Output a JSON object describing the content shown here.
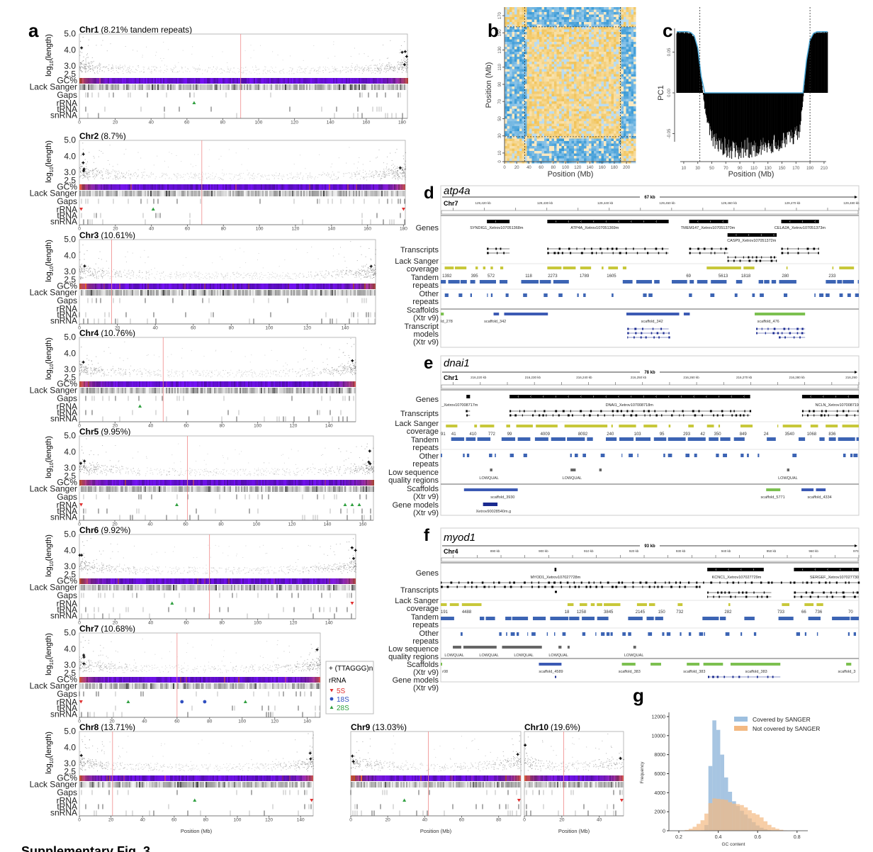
{
  "caption": "Supplementary Fig. 3",
  "panel_a": {
    "label": "a",
    "ylabel_main": "log",
    "ylabel_sub": "10",
    "ylabel_tail": "(length)",
    "yticks": [
      "5.0",
      "4.0",
      "3.0",
      "2.5"
    ],
    "rows": [
      "GC%",
      "Lack Sanger",
      "Gaps",
      "rRNA",
      "tRNA",
      "snRNA"
    ],
    "xlabel": "Position (Mb)",
    "colors": {
      "gc_low": "#6a10e0",
      "gc_high": "#e0602a",
      "centromere": "#f08a8a",
      "points": "#777777"
    },
    "chromosomes": [
      {
        "name": "Chr1",
        "note": "(8.21% tandem repeats)",
        "length_mb": 183,
        "centromere_mb": 90,
        "ticks": [
          0,
          20,
          40,
          60,
          80,
          100,
          120,
          140,
          160,
          180
        ]
      },
      {
        "name": "Chr2",
        "note": "(8.7%)",
        "length_mb": 181,
        "centromere_mb": 68,
        "ticks": [
          0,
          20,
          40,
          60,
          80,
          100,
          120,
          140,
          160,
          180
        ]
      },
      {
        "name": "Chr3",
        "note": "(10.61%)",
        "length_mb": 156,
        "centromere_mb": 17,
        "ticks": [
          0,
          20,
          40,
          60,
          80,
          100,
          120,
          140
        ]
      },
      {
        "name": "Chr4",
        "note": "(10.76%)",
        "length_mb": 155,
        "centromere_mb": 47,
        "ticks": [
          0,
          20,
          40,
          60,
          80,
          100,
          120,
          140
        ]
      },
      {
        "name": "Chr5",
        "note": "(9.95%)",
        "length_mb": 166,
        "centromere_mb": 61,
        "ticks": [
          0,
          20,
          40,
          60,
          80,
          100,
          120,
          140,
          160
        ]
      },
      {
        "name": "Chr6",
        "note": "(9.92%)",
        "length_mb": 155,
        "centromere_mb": 73,
        "ticks": [
          0,
          20,
          40,
          60,
          80,
          100,
          120,
          140
        ]
      },
      {
        "name": "Chr7",
        "note": "(10.68%)",
        "length_mb": 148,
        "centromere_mb": 60,
        "ticks": [
          0,
          20,
          40,
          60,
          80,
          100,
          120,
          140
        ]
      },
      {
        "name": "Chr8",
        "note": "(13.71%)",
        "length_mb": 148,
        "centromere_mb": 21,
        "ticks": [
          0,
          20,
          40,
          60,
          80,
          100,
          120,
          140
        ]
      },
      {
        "name": "Chr9",
        "note": "(13.03%)",
        "length_mb": 92,
        "centromere_mb": 42,
        "ticks": [
          0,
          20,
          40,
          60,
          80
        ]
      },
      {
        "name": "Chr10",
        "note": "(19.6%)",
        "length_mb": 53,
        "centromere_mb": 21,
        "ticks": [
          0,
          20,
          40
        ]
      }
    ],
    "legend": {
      "telomere": "+ (TTAGGG)n",
      "rrna_title": "rRNA",
      "items": [
        {
          "label": "5S",
          "color": "#e03030",
          "shape": "triangle-down"
        },
        {
          "label": "18S",
          "color": "#3050c0",
          "shape": "circle"
        },
        {
          "label": "28S",
          "color": "#30a040",
          "shape": "triangle-up"
        }
      ]
    }
  },
  "panel_b": {
    "label": "b",
    "xlabel": "Position (Mb)",
    "ylabel": "Position (Mb)",
    "xticks": [
      0,
      20,
      40,
      60,
      80,
      100,
      120,
      140,
      160,
      180,
      200
    ],
    "yticks": [
      0,
      10,
      30,
      50,
      70,
      90,
      110,
      130,
      150,
      170
    ],
    "colors": {
      "same_compartment": "#f0c050",
      "different_compartment": "#3a9ad6"
    }
  },
  "panel_c": {
    "label": "c",
    "ylabel": "PC1",
    "yticks": [
      "0.05",
      "0.00",
      "-0.05"
    ],
    "xticks": [
      10,
      30,
      50,
      70,
      90,
      110,
      130,
      150,
      170,
      190,
      210
    ],
    "xlabel": "Position (Mb)",
    "line_color": "#4aa8d8"
  },
  "browser": {
    "track_labels": {
      "genes": "Genes",
      "transcripts": "Transcripts",
      "coverage_1": "Lack Sanger",
      "coverage_2": "coverage",
      "tandem_1": "Tandem",
      "tandem_2": "repeats",
      "other_1": "Other",
      "other_2": "repeats",
      "lowqual_1": "Low sequence",
      "lowqual_2": "quality regions",
      "scaffolds_1": "Scaffolds",
      "scaffolds_2": "(Xtr v9)",
      "tmodels_1": "Transcript",
      "tmodels_2": "models",
      "tmodels_3": "(Xtr v9)",
      "gmodels_1": "Gene models",
      "gmodels_2": "(Xtr v9)"
    },
    "colors": {
      "coverage": "#c8c83a",
      "repeats": "#3c64b4",
      "scaffold_blue": "#3c5ab4",
      "scaffold_green": "#7cc050",
      "lowqual": "#666666"
    },
    "d": {
      "label": "d",
      "gene": "atp4a",
      "span": "67 kb",
      "chr": "Chr7",
      "ruler": [
        "129,420 kb",
        "129,430 kb",
        "129,440 kb",
        "129,450 kb",
        "129,460 kb",
        "129,470 kb",
        "129,480 kb"
      ],
      "genes": [
        "SYNDIG1_Xetrov107051368m",
        "ATP4A_Xetrov107051369m",
        "TMEM147_Xetrov107051370m",
        "CELA2A_Xetrov107051373m",
        "CASP9_Xetrov107051372m"
      ],
      "coverage": [
        "1392",
        "395",
        "572",
        "118",
        "2273",
        "1789",
        "1605",
        "69",
        "5613",
        "1818",
        "280",
        "233"
      ],
      "scaffolds": [
        "Id_278",
        "scaffold_342",
        "scaffold_342",
        "scaffold_476"
      ]
    },
    "e": {
      "label": "e",
      "gene": "dnai1",
      "span": "78 kb",
      "chr": "Chr1",
      "ruler": [
        "216,220 kb",
        "216,230 kb",
        "216,240 kb",
        "216,250 kb",
        "216,260 kb",
        "216,270 kb",
        "216,280 kb",
        "216,290"
      ],
      "genes": [
        "_Xetrov107008717m",
        "DNAI1_Xetrov107008718m",
        "NCLN_Xetrov107008719"
      ],
      "coverage": [
        "91",
        "41",
        "410",
        "772",
        "99",
        "4009",
        "8092",
        "240",
        "103",
        "95",
        "293",
        "42",
        "350",
        "849",
        "24",
        "3540",
        "1068",
        "836"
      ],
      "lowqual": [
        "LOWQUAL",
        "LOWQUAL",
        "LOWQUAL"
      ],
      "scaffolds": [
        "scaffold_3930",
        "scaffold_5771",
        "scaffold_4334"
      ],
      "gene_models": [
        "Xetrov90028540m.g"
      ]
    },
    "f": {
      "label": "f",
      "gene": "myod1",
      "span": "93 kb",
      "chr": "Chr4",
      "ruler": [
        "890 kb",
        "900 kb",
        "910 kb",
        "920 kb",
        "930 kb",
        "940 kb",
        "950 kb",
        "960 kb",
        "970"
      ],
      "genes": [
        "MYOD1_Xetrov107027728m",
        "KCNC1_Xetrov107027729m",
        "SERGEF_Xetrov107027730"
      ],
      "coverage": [
        "191",
        "4488",
        "18",
        "1258",
        "3845",
        "2145",
        "150",
        "732",
        "282",
        "733",
        "66",
        "736",
        "70"
      ],
      "lowqual": [
        "LOWQUAL",
        "LOWQUAL",
        "LOWQUAL",
        "LOWQUAL",
        "LOWQUAL"
      ],
      "scaffolds": [
        "r08",
        "scaffold_4589",
        "scaffold_383",
        "scaffold_383",
        "scaffold_383",
        "scaffold_3"
      ]
    }
  },
  "panel_g": {
    "label": "g",
    "xlabel": "GC content",
    "ylabel": "Frequency",
    "xticks": [
      "0.2",
      "0.4",
      "0.6",
      "0.8"
    ],
    "yticks": [
      "0",
      "2000",
      "4000",
      "6000",
      "8000",
      "10000",
      "12000"
    ],
    "legend": [
      "Covered by SANGER",
      "Not covered by SANGER"
    ]
  },
  "chart_data": [
    {
      "type": "bar",
      "panel": "g",
      "xlabel": "GC content",
      "ylabel": "Frequency",
      "xlim": [
        0.15,
        0.85
      ],
      "ylim": [
        0,
        12500
      ],
      "legend": "top-right",
      "x": [
        0.2,
        0.22,
        0.24,
        0.26,
        0.28,
        0.3,
        0.32,
        0.34,
        0.36,
        0.38,
        0.4,
        0.42,
        0.44,
        0.46,
        0.48,
        0.5,
        0.52,
        0.54,
        0.56,
        0.58,
        0.6,
        0.62,
        0.64,
        0.66,
        0.68,
        0.7,
        0.72,
        0.74,
        0.76,
        0.78
      ],
      "series": [
        {
          "name": "Covered by SANGER",
          "color": "#9dbfdf",
          "values": [
            0,
            0,
            0,
            0,
            0,
            0,
            50,
            600,
            6800,
            11600,
            10600,
            8000,
            5600,
            4100,
            3100,
            2600,
            2100,
            1700,
            1300,
            900,
            550,
            320,
            160,
            60,
            10,
            0,
            0,
            0,
            0,
            0
          ]
        },
        {
          "name": "Not covered by SANGER",
          "color": "#f3b982",
          "values": [
            0,
            20,
            80,
            200,
            420,
            720,
            1100,
            1800,
            2900,
            3400,
            3350,
            3300,
            3250,
            3000,
            2850,
            2800,
            2700,
            2450,
            2150,
            1850,
            1700,
            1400,
            1000,
            620,
            360,
            200,
            100,
            40,
            10,
            0
          ]
        }
      ]
    },
    {
      "type": "bar",
      "panel": "c",
      "xlabel": "Position (Mb)",
      "ylabel": "PC1",
      "ylim": [
        -0.085,
        0.085
      ],
      "vlines": [
        33,
        190
      ],
      "x": [
        0,
        5,
        10,
        15,
        20,
        25,
        30,
        35,
        40,
        45,
        50,
        55,
        60,
        65,
        70,
        75,
        80,
        85,
        90,
        95,
        100,
        105,
        110,
        115,
        120,
        125,
        130,
        135,
        140,
        145,
        150,
        155,
        160,
        165,
        170,
        175,
        180,
        185,
        190,
        195,
        200,
        205,
        210,
        215
      ],
      "values": [
        0.075,
        0.075,
        0.075,
        0.075,
        0.074,
        0.07,
        0.055,
        0.02,
        -0.02,
        -0.045,
        -0.058,
        -0.064,
        -0.068,
        -0.07,
        -0.072,
        -0.073,
        -0.074,
        -0.074,
        -0.074,
        -0.074,
        -0.073,
        -0.073,
        -0.072,
        -0.072,
        -0.071,
        -0.07,
        -0.069,
        -0.068,
        -0.067,
        -0.066,
        -0.064,
        -0.062,
        -0.06,
        -0.058,
        -0.055,
        -0.05,
        -0.01,
        0.04,
        0.065,
        0.073,
        0.075,
        0.075,
        0.075,
        0.075
      ]
    }
  ]
}
